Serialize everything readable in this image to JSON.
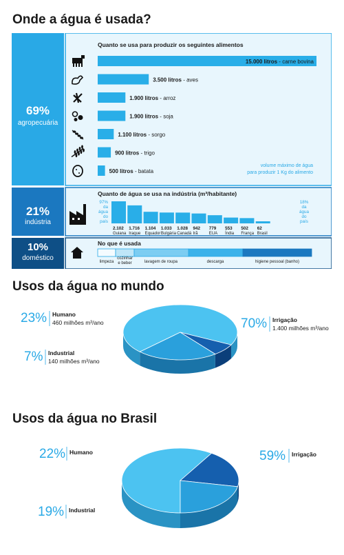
{
  "title": "Onde a água é usada?",
  "colors": {
    "dark": "#0e4f86",
    "mid": "#1b78c0",
    "light": "#29a9e6",
    "pale": "#e8f6fd",
    "bar": "#29aee8"
  },
  "sectors": {
    "agro": {
      "pct": "69%",
      "label": "agropecuária"
    },
    "ind": {
      "pct": "21%",
      "label": "indústria"
    },
    "dom": {
      "pct": "10%",
      "label": "doméstico"
    }
  },
  "agro_chart": {
    "heading": "Quanto se usa para produzir os seguintes alimentos",
    "note_line1": "volume máximo de água",
    "note_line2": "para produzir 1 Kg do alimento",
    "icons": [
      "cow-icon",
      "chicken-icon",
      "rice-icon",
      "soy-icon",
      "sorghum-icon",
      "wheat-icon",
      "potato-icon"
    ]
  },
  "ind_chart": {
    "heading": "Quanto de água se usa na indústria (m³/habitante)",
    "left_note": [
      "97%",
      "da",
      "água",
      "do",
      "país"
    ],
    "right_note": [
      "18%",
      "da",
      "água",
      "do",
      "país"
    ],
    "icon": "factory-icon"
  },
  "dom_chart": {
    "heading": "No que é usada",
    "segments": [
      "limpeza",
      "cozinhar",
      "e beber",
      "lavagem de roupa",
      "descarga",
      "higiene pessoal (banho)"
    ],
    "icon": "house-icon"
  },
  "chart_data": [
    {
      "type": "bar",
      "title": "Quanto se usa para produzir os seguintes alimentos",
      "orientation": "horizontal",
      "categories": [
        "carne bovina",
        "aves",
        "arroz",
        "soja",
        "sorgo",
        "trigo",
        "batata"
      ],
      "values": [
        15000,
        3500,
        1900,
        1900,
        1100,
        900,
        500
      ],
      "labels": [
        "15.000 litros",
        "3.500 litros",
        "1.900 litros",
        "1.900 litros",
        "1.100 litros",
        "900 litros",
        "500 litros"
      ],
      "unit": "litros",
      "xlim": [
        0,
        15000
      ]
    },
    {
      "type": "bar",
      "title": "Quanto de água se usa na indústria (m³/habitante)",
      "categories": [
        "Guiana",
        "Iraque",
        "Equador",
        "Bulgária",
        "Canadá",
        "Irã",
        "EUA",
        "Índia",
        "França",
        "Brasil"
      ],
      "values": [
        2102,
        1716,
        1104,
        1033,
        1028,
        942,
        779,
        553,
        502,
        62
      ],
      "value_labels": [
        "2.102",
        "1.716",
        "1.104",
        "1.033",
        "1.028",
        "942",
        "779",
        "553",
        "502",
        "62"
      ],
      "ylim": [
        0,
        2102
      ]
    },
    {
      "type": "pie",
      "title": "Usos da água no mundo",
      "slices": [
        {
          "name": "Irrigação",
          "value": 70,
          "pct": "70%",
          "detail": "1.400 milhões m³/ano"
        },
        {
          "name": "Industrial",
          "value": 7,
          "pct": "7%",
          "detail": "140 milhões m³/ano"
        },
        {
          "name": "Humano",
          "value": 23,
          "pct": "23%",
          "detail": "460 milhões m³/ano"
        }
      ]
    },
    {
      "type": "pie",
      "title": "Usos da água no Brasil",
      "slices": [
        {
          "name": "Irrigação",
          "value": 59,
          "pct": "59%"
        },
        {
          "name": "Industrial",
          "value": 19,
          "pct": "19%"
        },
        {
          "name": "Humano",
          "value": 22,
          "pct": "22%"
        }
      ]
    }
  ]
}
